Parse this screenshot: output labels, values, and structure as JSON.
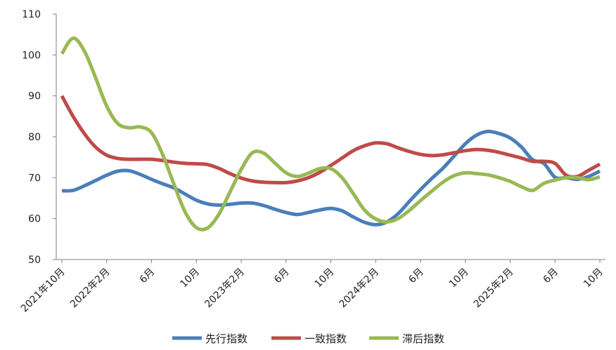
{
  "chart_data": {
    "type": "line",
    "title": "",
    "xlabel": "",
    "ylabel": "",
    "ylim": [
      50,
      110
    ],
    "y_ticks": [
      "50",
      "60",
      "70",
      "80",
      "90",
      "100",
      "110"
    ],
    "categories": [
      "2021年10月",
      "2021年11月",
      "2021年12月",
      "2022年1月",
      "2022年2月",
      "2022年3月",
      "2022年4月",
      "2022年5月",
      "2022年6月",
      "2022年7月",
      "2022年8月",
      "2022年9月",
      "2022年10月",
      "2022年11月",
      "2022年12月",
      "2023年1月",
      "2023年2月",
      "2023年3月",
      "2023年4月",
      "2023年5月",
      "2023年6月",
      "2023年7月",
      "2023年8月",
      "2023年9月",
      "2023年10月",
      "2023年11月",
      "2023年12月",
      "2024年1月",
      "2024年2月",
      "2024年3月",
      "2024年4月",
      "2024年5月",
      "2024年6月",
      "2024年7月",
      "2024年8月",
      "2024年9月",
      "2024年10月",
      "2024年11月",
      "2024年12月",
      "2025年1月",
      "2025年2月",
      "2025年3月",
      "2025年4月",
      "2025年5月",
      "2025年6月",
      "2025年7月",
      "2025年8月",
      "2025年9月",
      "2025年10月"
    ],
    "x_tick_labels": [
      {
        "index": 0,
        "label": "2021年10月"
      },
      {
        "index": 4,
        "label": "2022年2月"
      },
      {
        "index": 8,
        "label": "6月"
      },
      {
        "index": 12,
        "label": "10月"
      },
      {
        "index": 16,
        "label": "2023年2月"
      },
      {
        "index": 20,
        "label": "6月"
      },
      {
        "index": 24,
        "label": "10月"
      },
      {
        "index": 28,
        "label": "2024年2月"
      },
      {
        "index": 32,
        "label": "6月"
      },
      {
        "index": 36,
        "label": "10月"
      },
      {
        "index": 40,
        "label": "2025年2月"
      },
      {
        "index": 44,
        "label": "6月"
      },
      {
        "index": 48,
        "label": "10月"
      }
    ],
    "grid": false,
    "legend_position": "bottom",
    "series": [
      {
        "name": "先行指数",
        "color": "#4a7ebb",
        "values": [
          66.8,
          66.9,
          68.0,
          69.3,
          70.6,
          71.6,
          71.7,
          70.8,
          69.6,
          68.5,
          67.5,
          66.0,
          64.5,
          63.6,
          63.3,
          63.5,
          63.8,
          63.8,
          63.2,
          62.3,
          61.5,
          61.0,
          61.5,
          62.1,
          62.5,
          61.9,
          60.4,
          59.1,
          58.5,
          59.2,
          61.2,
          64.2,
          67.1,
          69.8,
          72.3,
          75.3,
          78.3,
          80.4,
          81.3,
          80.8,
          79.7,
          77.5,
          74.4,
          73.5,
          70.1,
          70.0,
          69.6,
          70.3,
          71.6
        ]
      },
      {
        "name": "一致指数",
        "color": "#be4b48",
        "values": [
          90.0,
          85.0,
          80.8,
          77.5,
          75.5,
          74.7,
          74.5,
          74.5,
          74.5,
          74.2,
          73.8,
          73.5,
          73.4,
          73.2,
          72.3,
          71.0,
          69.9,
          69.2,
          68.9,
          68.8,
          68.8,
          69.2,
          70.0,
          71.3,
          73.0,
          74.8,
          76.6,
          77.8,
          78.5,
          78.3,
          77.3,
          76.4,
          75.7,
          75.4,
          75.6,
          76.1,
          76.6,
          76.9,
          76.7,
          76.2,
          75.5,
          74.8,
          74.0,
          74.0,
          73.5,
          70.6,
          70.3,
          71.8,
          73.3
        ]
      },
      {
        "name": "滞后指数",
        "color": "#98b954",
        "values": [
          100.3,
          104.1,
          101.0,
          94.5,
          87.5,
          83.2,
          82.2,
          82.4,
          81.0,
          75.6,
          68.4,
          61.6,
          57.8,
          57.7,
          61.0,
          66.5,
          72.0,
          76.1,
          76.0,
          73.6,
          71.2,
          70.3,
          71.1,
          72.2,
          72.2,
          70.0,
          66.1,
          62.1,
          59.9,
          59.2,
          60.0,
          62.0,
          64.4,
          66.7,
          68.9,
          70.5,
          71.2,
          71.0,
          70.7,
          70.0,
          69.1,
          67.8,
          66.9,
          68.6,
          69.4,
          70.0,
          70.0,
          69.5,
          70.2
        ]
      }
    ]
  }
}
